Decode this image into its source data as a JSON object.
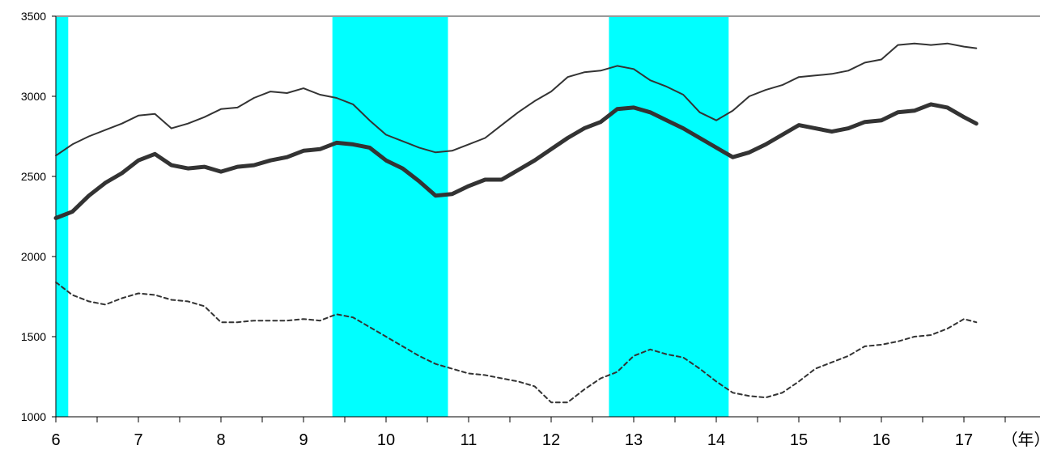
{
  "chart_data": {
    "type": "line",
    "x_unit_label": "（年）",
    "xlim": [
      6,
      18
    ],
    "ylim": [
      1000,
      3500
    ],
    "y_ticks": [
      1000,
      1500,
      2000,
      2500,
      3000,
      3500
    ],
    "x_ticks": [
      6,
      7,
      8,
      9,
      10,
      11,
      12,
      13,
      14,
      15,
      16,
      17
    ],
    "x_tick_labels": [
      "6",
      "7",
      "8",
      "9",
      "10",
      "11",
      "12",
      "13",
      "14",
      "15",
      "16",
      "17"
    ],
    "grid": false,
    "recession_bands": [
      [
        6,
        6.15
      ],
      [
        9.35,
        10.75
      ],
      [
        12.7,
        14.15
      ]
    ],
    "band_color": "#00FFFF",
    "series": [
      {
        "style": "thin-solid",
        "color": "#333333",
        "x": [
          6,
          6.2,
          6.4,
          6.6,
          6.8,
          7,
          7.2,
          7.4,
          7.6,
          7.8,
          8,
          8.2,
          8.4,
          8.6,
          8.8,
          9,
          9.2,
          9.4,
          9.6,
          9.8,
          10,
          10.2,
          10.4,
          10.6,
          10.8,
          11,
          11.2,
          11.4,
          11.6,
          11.8,
          12,
          12.2,
          12.4,
          12.6,
          12.8,
          13,
          13.2,
          13.4,
          13.6,
          13.8,
          14,
          14.2,
          14.4,
          14.6,
          14.8,
          15,
          15.2,
          15.4,
          15.6,
          15.8,
          16,
          16.2,
          16.4,
          16.6,
          16.8,
          17,
          17.15
        ],
        "y": [
          2630,
          2700,
          2750,
          2790,
          2830,
          2880,
          2890,
          2800,
          2830,
          2870,
          2920,
          2930,
          2990,
          3030,
          3020,
          3050,
          3010,
          2990,
          2950,
          2850,
          2760,
          2720,
          2680,
          2650,
          2660,
          2700,
          2740,
          2820,
          2900,
          2970,
          3030,
          3120,
          3150,
          3160,
          3190,
          3170,
          3100,
          3060,
          3010,
          2900,
          2850,
          2910,
          3000,
          3040,
          3070,
          3120,
          3130,
          3140,
          3160,
          3210,
          3230,
          3320,
          3330,
          3320,
          3330,
          3310,
          3300
        ]
      },
      {
        "style": "thick-solid",
        "color": "#333333",
        "x": [
          6,
          6.2,
          6.4,
          6.6,
          6.8,
          7,
          7.2,
          7.4,
          7.6,
          7.8,
          8,
          8.2,
          8.4,
          8.6,
          8.8,
          9,
          9.2,
          9.4,
          9.6,
          9.8,
          10,
          10.2,
          10.4,
          10.6,
          10.8,
          11,
          11.2,
          11.4,
          11.6,
          11.8,
          12,
          12.2,
          12.4,
          12.6,
          12.8,
          13,
          13.2,
          13.4,
          13.6,
          13.8,
          14,
          14.2,
          14.4,
          14.6,
          14.8,
          15,
          15.2,
          15.4,
          15.6,
          15.8,
          16,
          16.2,
          16.4,
          16.6,
          16.8,
          17,
          17.15
        ],
        "y": [
          2240,
          2280,
          2380,
          2460,
          2520,
          2600,
          2640,
          2570,
          2550,
          2560,
          2530,
          2560,
          2570,
          2600,
          2620,
          2660,
          2670,
          2710,
          2700,
          2680,
          2600,
          2550,
          2470,
          2380,
          2390,
          2440,
          2480,
          2480,
          2540,
          2600,
          2670,
          2740,
          2800,
          2840,
          2920,
          2930,
          2900,
          2850,
          2800,
          2740,
          2680,
          2620,
          2650,
          2700,
          2760,
          2820,
          2800,
          2780,
          2800,
          2840,
          2850,
          2900,
          2910,
          2950,
          2930,
          2870,
          2830
        ]
      },
      {
        "style": "dashed",
        "color": "#333333",
        "x": [
          6,
          6.2,
          6.4,
          6.6,
          6.8,
          7,
          7.2,
          7.4,
          7.6,
          7.8,
          8,
          8.2,
          8.4,
          8.6,
          8.8,
          9,
          9.2,
          9.4,
          9.6,
          9.8,
          10,
          10.2,
          10.4,
          10.6,
          10.8,
          11,
          11.2,
          11.4,
          11.6,
          11.8,
          12,
          12.2,
          12.4,
          12.6,
          12.8,
          13,
          13.2,
          13.4,
          13.6,
          13.8,
          14,
          14.2,
          14.4,
          14.6,
          14.8,
          15,
          15.2,
          15.4,
          15.6,
          15.8,
          16,
          16.2,
          16.4,
          16.6,
          16.8,
          17,
          17.15
        ],
        "y": [
          1840,
          1760,
          1720,
          1700,
          1740,
          1770,
          1760,
          1730,
          1720,
          1690,
          1590,
          1590,
          1600,
          1600,
          1600,
          1610,
          1600,
          1640,
          1620,
          1560,
          1500,
          1440,
          1380,
          1330,
          1300,
          1270,
          1260,
          1240,
          1220,
          1190,
          1090,
          1090,
          1170,
          1240,
          1280,
          1380,
          1420,
          1390,
          1370,
          1300,
          1220,
          1150,
          1130,
          1120,
          1150,
          1220,
          1300,
          1340,
          1380,
          1440,
          1450,
          1470,
          1500,
          1510,
          1550,
          1610,
          1590
        ]
      }
    ]
  }
}
